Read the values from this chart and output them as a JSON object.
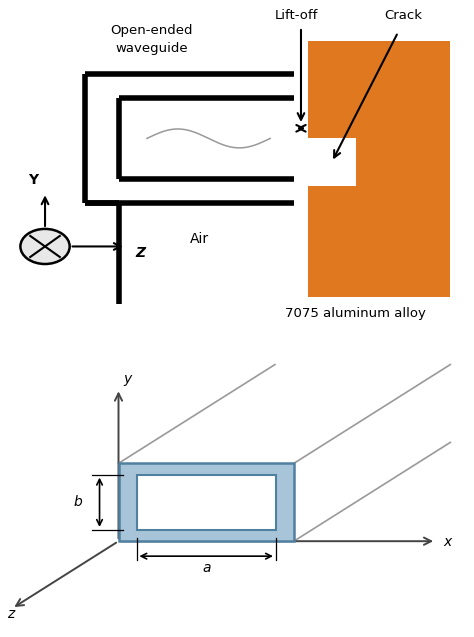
{
  "aluminum_color": "#E07820",
  "waveguide_color": "#000000",
  "waveguide_lw": 4.0,
  "axis_color": "#666666",
  "rect_fill_color": "#A8C4D8",
  "rect_edge_color": "#5080A0",
  "bg_color": "#ffffff",
  "labels": {
    "liftoff": "Lift-off",
    "crack": "Crack",
    "open_ended": "Open-ended\nwaveguide",
    "air": "Air",
    "aluminum": "7075 aluminum alloy",
    "Y": "Y",
    "Z": "Z",
    "x": "x",
    "y": "y",
    "z": "z",
    "a": "a",
    "b": "b"
  }
}
